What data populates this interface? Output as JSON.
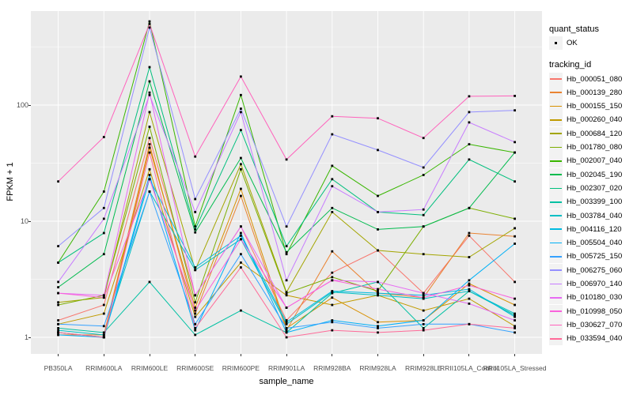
{
  "legend": {
    "quant_status": {
      "title": "quant_status",
      "items": [
        {
          "label": "OK",
          "shape": "filled-black-square"
        }
      ]
    },
    "tracking_id": {
      "title": "tracking_id"
    }
  },
  "colors": {
    "panel_background": "#EBEBEB",
    "grid_line": "#FFFFFF",
    "point": "#000000",
    "tick_text": "#4D4D4D",
    "legend_key_background": "#F2F2F2"
  },
  "chart_data": {
    "type": "line",
    "title": "",
    "xlabel": "sample_name",
    "ylabel": "FPKM + 1",
    "y_scale": "log10",
    "y_ticks": [
      1,
      10,
      100
    ],
    "y_tick_labels": [
      "1",
      "10",
      "100"
    ],
    "y_minor_ticks": [
      3.162,
      31.62,
      316.2
    ],
    "ylim": [
      0.72,
      650
    ],
    "grid": true,
    "legend_position": "right",
    "marker": "small-black-square",
    "categories": [
      "PB350LA",
      "RRIM600LA",
      "RRIM600LE",
      "RRIM600SE",
      "RRIM600PE",
      "RRIM901LA",
      "RRIM928BA",
      "RRIM928LA",
      "RRIM928LE",
      "RRII105LA_Control",
      "RRII105LA_Stressed"
    ],
    "series": [
      {
        "name": "Hb_000051_080",
        "color": "#F8766D",
        "values": [
          1.4,
          1.9,
          52,
          2.3,
          9,
          1.4,
          3.6,
          5.6,
          2.4,
          7.5,
          3.0
        ]
      },
      {
        "name": "Hb_000139_280",
        "color": "#EA8331",
        "values": [
          1.05,
          1.05,
          46,
          1.6,
          16.5,
          1.15,
          5.5,
          2.4,
          2.2,
          7.9,
          7.4
        ]
      },
      {
        "name": "Hb_000155_150",
        "color": "#D89000",
        "values": [
          1.1,
          1.0,
          43,
          1.8,
          19,
          1.2,
          2.2,
          1.35,
          1.4,
          2.9,
          1.9
        ]
      },
      {
        "name": "Hb_000260_040",
        "color": "#C09B00",
        "values": [
          1.3,
          1.6,
          28,
          1.5,
          4.4,
          2.3,
          1.9,
          2.3,
          1.7,
          2.15,
          1.25
        ]
      },
      {
        "name": "Hb_000684_120",
        "color": "#A3A500",
        "values": [
          2.0,
          2.2,
          87,
          3.8,
          31,
          2.45,
          12,
          5.6,
          5.2,
          4.9,
          8.7
        ]
      },
      {
        "name": "Hb_001780_080",
        "color": "#7CAE00",
        "values": [
          1.9,
          2.3,
          65,
          2.0,
          28,
          2.4,
          3.3,
          2.5,
          9.0,
          13,
          10.5
        ]
      },
      {
        "name": "Hb_002007_040",
        "color": "#39B600",
        "values": [
          4.4,
          18,
          525,
          9.0,
          122,
          5.2,
          30,
          16.5,
          25,
          46,
          39
        ]
      },
      {
        "name": "Hb_002045_190",
        "color": "#00BB4E",
        "values": [
          2.7,
          5.2,
          160,
          8.0,
          35,
          5.4,
          13,
          8.5,
          9.0,
          13,
          39
        ]
      },
      {
        "name": "Hb_002307_020",
        "color": "#00BF7D",
        "values": [
          4.4,
          7.9,
          212,
          8.5,
          61,
          6.1,
          23,
          12,
          11.3,
          34,
          22
        ]
      },
      {
        "name": "Hb_003399_100",
        "color": "#00C1A3",
        "values": [
          1.2,
          1.1,
          3.0,
          1.05,
          1.7,
          1.1,
          2.4,
          3.0,
          1.2,
          2.5,
          1.55
        ]
      },
      {
        "name": "Hb_003784_040",
        "color": "#00BFC4",
        "values": [
          1.15,
          1.05,
          18,
          3.8,
          7.0,
          1.3,
          2.45,
          2.3,
          2.15,
          2.5,
          1.6
        ]
      },
      {
        "name": "Hb_004116_120",
        "color": "#00BAE0",
        "values": [
          1.1,
          1.0,
          23,
          4.0,
          7.5,
          1.35,
          2.5,
          2.4,
          2.3,
          2.6,
          1.5
        ]
      },
      {
        "name": "Hb_005504_040",
        "color": "#00B0F6",
        "values": [
          1.05,
          1.0,
          25,
          1.15,
          7.9,
          1.1,
          1.4,
          1.25,
          1.4,
          3.1,
          6.4
        ]
      },
      {
        "name": "Hb_005725_150",
        "color": "#35A2FF",
        "values": [
          1.3,
          1.25,
          18,
          1.3,
          5.2,
          1.2,
          1.35,
          1.2,
          1.3,
          1.3,
          1.1
        ]
      },
      {
        "name": "Hb_006275_060",
        "color": "#9590FF",
        "values": [
          6.1,
          13,
          465,
          15.5,
          93,
          9.0,
          56,
          41,
          29,
          87,
          90
        ]
      },
      {
        "name": "Hb_006970_140",
        "color": "#C77CFF",
        "values": [
          3.0,
          10.5,
          122,
          12,
          87,
          3.1,
          20,
          12,
          12.6,
          71,
          48
        ]
      },
      {
        "name": "Hb_010180_030",
        "color": "#E76BF3",
        "values": [
          2.4,
          2.3,
          128,
          2.3,
          9.0,
          1.8,
          3.1,
          3.0,
          2.4,
          1.95,
          1.4
        ]
      },
      {
        "name": "Hb_010998_050",
        "color": "#FA62DB",
        "values": [
          2.4,
          2.2,
          23,
          1.7,
          7.0,
          1.8,
          3.1,
          2.6,
          2.2,
          2.8,
          2.15
        ]
      },
      {
        "name": "Hb_030627_070",
        "color": "#FF62BC",
        "values": [
          22,
          53,
          500,
          36,
          176,
          34,
          80,
          77,
          52,
          119,
          120
        ]
      },
      {
        "name": "Hb_033594_040",
        "color": "#FF6A98",
        "values": [
          1.1,
          1.0,
          39,
          1.2,
          4.0,
          1.0,
          1.15,
          1.1,
          1.15,
          1.3,
          1.2
        ]
      }
    ]
  }
}
